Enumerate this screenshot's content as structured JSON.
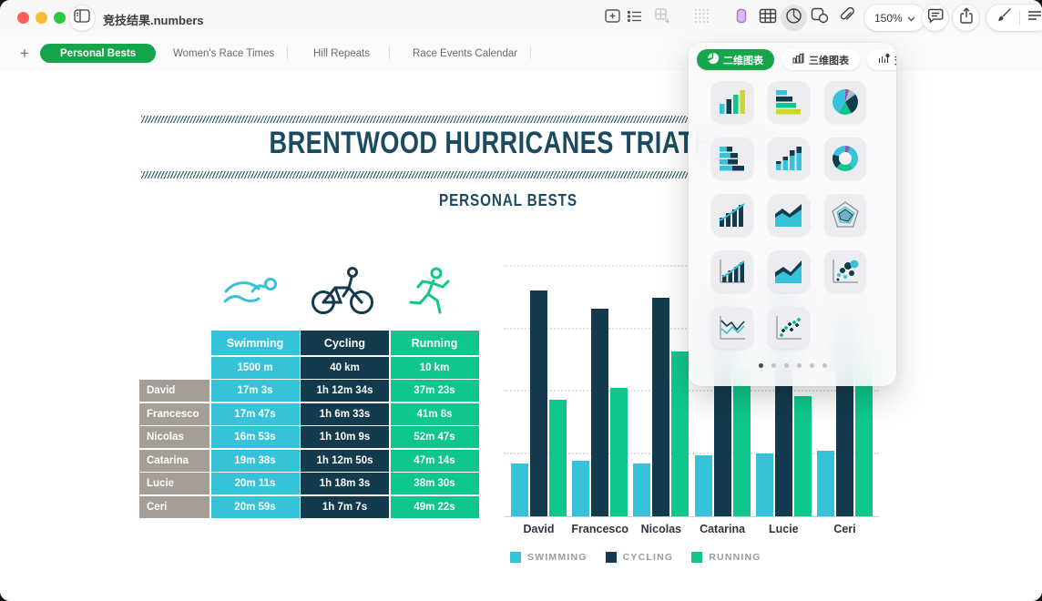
{
  "window": {
    "title": "竞技结果.numbers"
  },
  "toolbar": {
    "zoom_level": "150%"
  },
  "sheet_tabs": {
    "add_label": "+",
    "tabs": [
      {
        "label": "Personal Bests",
        "active": true
      },
      {
        "label": "Women's Race Times",
        "active": false
      },
      {
        "label": "Hill Repeats",
        "active": false
      },
      {
        "label": "Race Events Calendar",
        "active": false
      }
    ]
  },
  "document": {
    "title": "BRENTWOOD HURRICANES TRIATHLON",
    "subtitle": "PERSONAL BESTS"
  },
  "table": {
    "name_column_color": "#a49e97",
    "columns": [
      {
        "label": "Swimming",
        "distance": "1500 m",
        "color": "#36c3d9"
      },
      {
        "label": "Cycling",
        "distance": "40 km",
        "color": "#133b4d"
      },
      {
        "label": "Running",
        "distance": "10 km",
        "color": "#0fc78c"
      }
    ],
    "rows": [
      {
        "name": "David",
        "times": [
          "17m 3s",
          "1h 12m 34s",
          "37m 23s"
        ]
      },
      {
        "name": "Francesco",
        "times": [
          "17m 47s",
          "1h 6m 33s",
          "41m 8s"
        ]
      },
      {
        "name": "Nicolas",
        "times": [
          "16m 53s",
          "1h 10m 9s",
          "52m 47s"
        ]
      },
      {
        "name": "Catarina",
        "times": [
          "19m 38s",
          "1h 12m 50s",
          "47m 14s"
        ]
      },
      {
        "name": "Lucie",
        "times": [
          "20m 11s",
          "1h 18m 3s",
          "38m 30s"
        ]
      },
      {
        "name": "Ceri",
        "times": [
          "20m 59s",
          "1h 7m 7s",
          "49m 22s"
        ]
      }
    ]
  },
  "chart_data": {
    "type": "bar",
    "title": "",
    "categories": [
      "David",
      "Francesco",
      "Nicolas",
      "Catarina",
      "Lucie",
      "Ceri"
    ],
    "series": [
      {
        "name": "SWIMMING",
        "color": "#36c3d9",
        "values_minutes": [
          17.05,
          17.78,
          16.88,
          19.63,
          20.18,
          20.98
        ]
      },
      {
        "name": "CYCLING",
        "color": "#133b4d",
        "values_minutes": [
          72.57,
          66.55,
          70.15,
          72.83,
          78.05,
          67.12
        ]
      },
      {
        "name": "RUNNING",
        "color": "#0fc78c",
        "values_minutes": [
          37.38,
          41.13,
          52.78,
          47.23,
          38.5,
          49.37
        ]
      }
    ],
    "y_axis": {
      "unit": "minutes",
      "gridlines_minutes": [
        20,
        40,
        60,
        80
      ],
      "max": 84
    },
    "grid": "dotted-horizontal",
    "legend_position": "bottom"
  },
  "popover": {
    "tabs": [
      {
        "label": "二维图表",
        "active": true
      },
      {
        "label": "三维图表",
        "active": false
      },
      {
        "label": "交互式",
        "active": false
      }
    ],
    "chart_types": [
      "vertical-bar",
      "horizontal-bar",
      "pie",
      "stacked-horizontal-bar",
      "stacked-vertical-bar",
      "donut",
      "bar-with-trend-line",
      "area",
      "radar",
      "combo-bar-line",
      "layered-area",
      "bubble",
      "line",
      "scatter"
    ],
    "page_dot_count": 6,
    "active_page_dot": 0
  }
}
